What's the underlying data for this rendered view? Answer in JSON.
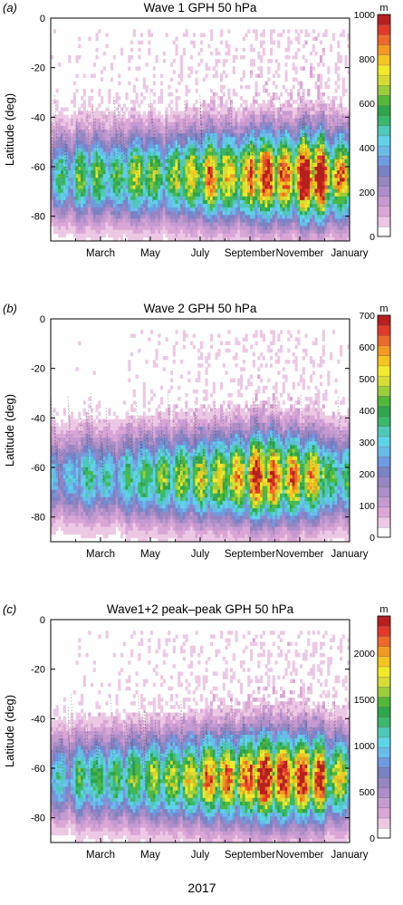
{
  "figure": {
    "shared_xlabel": "2017"
  },
  "palette": [
    "#ffffff",
    "#ecc8e4",
    "#d9a6d6",
    "#c49ad0",
    "#ad8ec8",
    "#9585c0",
    "#7b82c6",
    "#6f9be0",
    "#68bde8",
    "#5fd2e8",
    "#4fc8b8",
    "#3cb86c",
    "#2fa64c",
    "#52b83a",
    "#9ccd3a",
    "#d8dc32",
    "#f2ea2a",
    "#f5c420",
    "#f29a22",
    "#ec6a2a",
    "#e23a2a",
    "#b81f1f"
  ],
  "chart_data": [
    {
      "type": "heatmap",
      "panel_label": "(a)",
      "title": "Wave 1 GPH 50 hPa",
      "ylabel": "Latitude (deg)",
      "xlabel": "",
      "x_ticks": [
        "March",
        "May",
        "July",
        "September",
        "November",
        "January"
      ],
      "x_tick_months": [
        3,
        5,
        7,
        9,
        11,
        13
      ],
      "xlim_months": [
        1,
        13
      ],
      "y_ticks": [
        0,
        -20,
        -40,
        -60,
        -80
      ],
      "ylim": [
        -90,
        0
      ],
      "colorbar": {
        "unit": "m",
        "ticks": [
          0,
          200,
          400,
          600,
          800,
          1000
        ],
        "max": 1000
      },
      "activity": [
        0.45,
        0.55,
        0.5,
        0.6,
        0.55,
        0.65,
        0.75,
        0.7,
        0.85,
        0.8,
        0.95,
        0.75
      ],
      "peak_value": 1000
    },
    {
      "type": "heatmap",
      "panel_label": "(b)",
      "title": "Wave 2 GPH 50 hPa",
      "ylabel": "Latitude (deg)",
      "xlabel": "",
      "x_ticks": [
        "March",
        "May",
        "July",
        "September",
        "November",
        "January"
      ],
      "x_tick_months": [
        3,
        5,
        7,
        9,
        11,
        13
      ],
      "xlim_months": [
        1,
        13
      ],
      "y_ticks": [
        0,
        -20,
        -40,
        -60,
        -80
      ],
      "ylim": [
        -90,
        0
      ],
      "colorbar": {
        "unit": "m",
        "ticks": [
          0,
          100,
          200,
          300,
          400,
          500,
          600,
          700
        ],
        "max": 700
      },
      "activity": [
        0.35,
        0.45,
        0.4,
        0.5,
        0.55,
        0.6,
        0.65,
        0.7,
        0.85,
        0.75,
        0.7,
        0.5
      ],
      "peak_value": 700
    },
    {
      "type": "heatmap",
      "panel_label": "(c)",
      "title": "Wave1+2 peak–peak GPH 50 hPa",
      "ylabel": "Latitude (deg)",
      "xlabel": "",
      "x_ticks": [
        "March",
        "May",
        "July",
        "September",
        "November",
        "January"
      ],
      "x_tick_months": [
        3,
        5,
        7,
        9,
        11,
        13
      ],
      "xlim_months": [
        1,
        13
      ],
      "y_ticks": [
        0,
        -20,
        -40,
        -60,
        -80
      ],
      "ylim": [
        -90,
        0
      ],
      "colorbar": {
        "unit": "m",
        "ticks": [
          0,
          500,
          1000,
          1500,
          2000
        ],
        "max": 2400
      },
      "activity": [
        0.4,
        0.5,
        0.5,
        0.55,
        0.6,
        0.65,
        0.75,
        0.75,
        0.9,
        0.85,
        0.85,
        0.65
      ],
      "peak_value": 2400
    }
  ]
}
